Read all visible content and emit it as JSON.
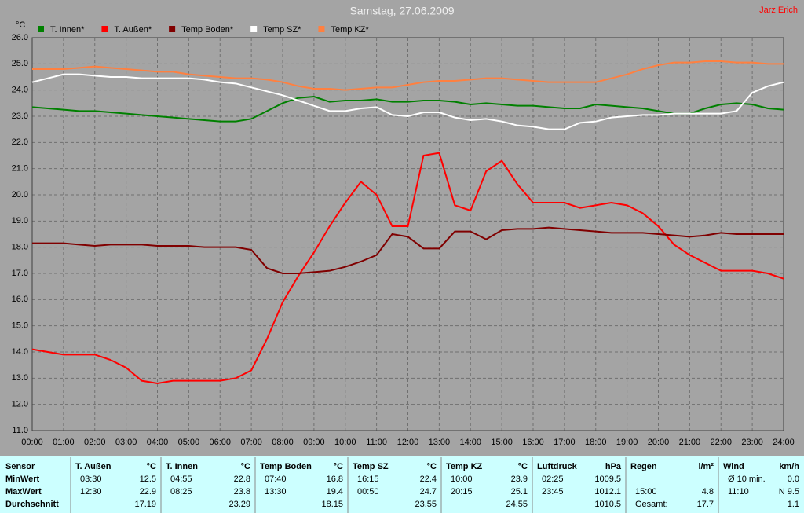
{
  "chart_data": {
    "type": "line",
    "title": "Samstag, 27.06.2009",
    "corner_note": "Jarz Erich",
    "y_label": "°C",
    "x": [
      0,
      0.5,
      1,
      1.5,
      2,
      2.5,
      3,
      3.5,
      4,
      4.5,
      5,
      5.5,
      6,
      6.5,
      7,
      7.5,
      8,
      8.5,
      9,
      9.5,
      10,
      10.5,
      11,
      11.5,
      12,
      12.5,
      13,
      13.5,
      14,
      14.5,
      15,
      15.5,
      16,
      16.5,
      17,
      17.5,
      18,
      18.5,
      19,
      19.5,
      20,
      20.5,
      21,
      21.5,
      22,
      22.5,
      23,
      23.5,
      24
    ],
    "xlim": [
      0,
      24
    ],
    "xticks": [
      {
        "value": 0,
        "label": "00:00"
      },
      {
        "value": 1,
        "label": "01:00"
      },
      {
        "value": 2,
        "label": "02:00"
      },
      {
        "value": 3,
        "label": "03:00"
      },
      {
        "value": 4,
        "label": "04:00"
      },
      {
        "value": 5,
        "label": "05:00"
      },
      {
        "value": 6,
        "label": "06:00"
      },
      {
        "value": 7,
        "label": "07:00"
      },
      {
        "value": 8,
        "label": "08:00"
      },
      {
        "value": 9,
        "label": "09:00"
      },
      {
        "value": 10,
        "label": "10:00"
      },
      {
        "value": 11,
        "label": "11:00"
      },
      {
        "value": 12,
        "label": "12:00"
      },
      {
        "value": 13,
        "label": "13:00"
      },
      {
        "value": 14,
        "label": "14:00"
      },
      {
        "value": 15,
        "label": "15:00"
      },
      {
        "value": 16,
        "label": "16:00"
      },
      {
        "value": 17,
        "label": "17:00"
      },
      {
        "value": 18,
        "label": "18:00"
      },
      {
        "value": 19,
        "label": "19:00"
      },
      {
        "value": 20,
        "label": "20:00"
      },
      {
        "value": 21,
        "label": "21:00"
      },
      {
        "value": 22,
        "label": "22:00"
      },
      {
        "value": 23,
        "label": "23:00"
      },
      {
        "value": 24,
        "label": "24:00"
      }
    ],
    "ylim": [
      11,
      26
    ],
    "yticks": [
      {
        "value": 11,
        "label": "11.0"
      },
      {
        "value": 12,
        "label": "12.0"
      },
      {
        "value": 13,
        "label": "13.0"
      },
      {
        "value": 14,
        "label": "14.0"
      },
      {
        "value": 15,
        "label": "15.0"
      },
      {
        "value": 16,
        "label": "16.0"
      },
      {
        "value": 17,
        "label": "17.0"
      },
      {
        "value": 18,
        "label": "18.0"
      },
      {
        "value": 19,
        "label": "19.0"
      },
      {
        "value": 20,
        "label": "20.0"
      },
      {
        "value": 21,
        "label": "21.0"
      },
      {
        "value": 22,
        "label": "22.0"
      },
      {
        "value": 23,
        "label": "23.0"
      },
      {
        "value": 24,
        "label": "24.0"
      },
      {
        "value": 25,
        "label": "25.0"
      },
      {
        "value": 26,
        "label": "26.0"
      }
    ],
    "grid": true,
    "series": [
      {
        "name": "T. Innen*",
        "color": "#008000",
        "values": [
          23.35,
          23.3,
          23.25,
          23.2,
          23.2,
          23.15,
          23.1,
          23.05,
          23.0,
          22.95,
          22.9,
          22.85,
          22.8,
          22.8,
          22.9,
          23.2,
          23.5,
          23.7,
          23.75,
          23.55,
          23.6,
          23.6,
          23.65,
          23.55,
          23.55,
          23.6,
          23.6,
          23.55,
          23.45,
          23.5,
          23.45,
          23.4,
          23.4,
          23.35,
          23.3,
          23.3,
          23.45,
          23.4,
          23.35,
          23.3,
          23.2,
          23.1,
          23.1,
          23.3,
          23.45,
          23.5,
          23.45,
          23.3,
          23.25
        ]
      },
      {
        "name": "T. Außen*",
        "color": "#ff0000",
        "values": [
          14.1,
          14.0,
          13.9,
          13.9,
          13.9,
          13.7,
          13.4,
          12.9,
          12.8,
          12.9,
          12.9,
          12.9,
          12.9,
          13.0,
          13.3,
          14.5,
          15.9,
          16.9,
          17.8,
          18.8,
          19.7,
          20.5,
          20.0,
          18.8,
          18.8,
          21.5,
          21.6,
          19.6,
          19.4,
          20.9,
          21.3,
          20.4,
          19.7,
          19.7,
          19.7,
          19.5,
          19.6,
          19.7,
          19.6,
          19.3,
          18.8,
          18.1,
          17.7,
          17.4,
          17.1,
          17.1,
          17.1,
          17.0,
          16.8
        ]
      },
      {
        "name": "Temp Boden*",
        "color": "#800000",
        "values": [
          18.15,
          18.15,
          18.15,
          18.1,
          18.05,
          18.1,
          18.1,
          18.1,
          18.05,
          18.05,
          18.05,
          18.0,
          18.0,
          18.0,
          17.9,
          17.2,
          17.0,
          17.0,
          17.05,
          17.1,
          17.25,
          17.45,
          17.7,
          18.5,
          18.4,
          17.95,
          17.95,
          18.6,
          18.6,
          18.3,
          18.65,
          18.7,
          18.7,
          18.75,
          18.7,
          18.65,
          18.6,
          18.55,
          18.55,
          18.55,
          18.5,
          18.45,
          18.4,
          18.45,
          18.55,
          18.5,
          18.5,
          18.5,
          18.5
        ]
      },
      {
        "name": "Temp SZ*",
        "color": "#ffffff",
        "values": [
          24.3,
          24.45,
          24.6,
          24.6,
          24.55,
          24.5,
          24.5,
          24.45,
          24.45,
          24.45,
          24.45,
          24.4,
          24.3,
          24.25,
          24.1,
          23.95,
          23.8,
          23.6,
          23.4,
          23.2,
          23.2,
          23.3,
          23.35,
          23.05,
          23.0,
          23.15,
          23.15,
          22.95,
          22.85,
          22.9,
          22.8,
          22.65,
          22.6,
          22.5,
          22.5,
          22.75,
          22.8,
          22.95,
          23.0,
          23.05,
          23.05,
          23.1,
          23.1,
          23.1,
          23.1,
          23.2,
          23.9,
          24.15,
          24.3
        ]
      },
      {
        "name": "Temp KZ*",
        "color": "#ff8040",
        "values": [
          24.8,
          24.8,
          24.8,
          24.85,
          24.9,
          24.85,
          24.8,
          24.75,
          24.7,
          24.7,
          24.6,
          24.55,
          24.5,
          24.45,
          24.45,
          24.4,
          24.3,
          24.15,
          24.05,
          24.05,
          24.0,
          24.05,
          24.1,
          24.1,
          24.2,
          24.3,
          24.35,
          24.35,
          24.4,
          24.45,
          24.45,
          24.4,
          24.35,
          24.3,
          24.3,
          24.3,
          24.3,
          24.45,
          24.6,
          24.8,
          24.95,
          25.05,
          25.05,
          25.1,
          25.1,
          25.05,
          25.05,
          25.0,
          25.0
        ]
      }
    ]
  },
  "table": {
    "row_header": "Sensor",
    "row_labels": [
      "MinWert",
      "MaxWert",
      "Durchschnitt"
    ],
    "columns": [
      {
        "name": "T. Außen",
        "unit": "°C",
        "cells": [
          [
            "03:30",
            "12.5"
          ],
          [
            "12:30",
            "22.9"
          ],
          [
            null,
            "17.19"
          ]
        ]
      },
      {
        "name": "T. Innen",
        "unit": "°C",
        "cells": [
          [
            "04:55",
            "22.8"
          ],
          [
            "08:25",
            "23.8"
          ],
          [
            null,
            "23.29"
          ]
        ]
      },
      {
        "name": "Temp Boden",
        "unit": "°C",
        "cells": [
          [
            "07:40",
            "16.8"
          ],
          [
            "13:30",
            "19.4"
          ],
          [
            null,
            "18.15"
          ]
        ]
      },
      {
        "name": "Temp SZ",
        "unit": "°C",
        "cells": [
          [
            "16:15",
            "22.4"
          ],
          [
            "00:50",
            "24.7"
          ],
          [
            null,
            "23.55"
          ]
        ]
      },
      {
        "name": "Temp KZ",
        "unit": "°C",
        "cells": [
          [
            "10:00",
            "23.9"
          ],
          [
            "20:15",
            "25.1"
          ],
          [
            null,
            "24.55"
          ]
        ]
      },
      {
        "name": "Luftdruck",
        "unit": "hPa",
        "cells": [
          [
            "02:25",
            "1009.5"
          ],
          [
            "23:45",
            "1012.1"
          ],
          [
            null,
            "1010.5"
          ]
        ]
      },
      {
        "name": "Regen",
        "unit": "l/m²",
        "cells": [
          [
            null,
            null
          ],
          [
            "15:00",
            "4.8"
          ],
          [
            "Gesamt:",
            "17.7"
          ]
        ]
      },
      {
        "name": "Wind",
        "unit": "km/h",
        "cells": [
          [
            "Ø 10 min.",
            "0.0"
          ],
          [
            "11:10",
            "N 9.5"
          ],
          [
            null,
            "1.1"
          ]
        ]
      }
    ]
  }
}
